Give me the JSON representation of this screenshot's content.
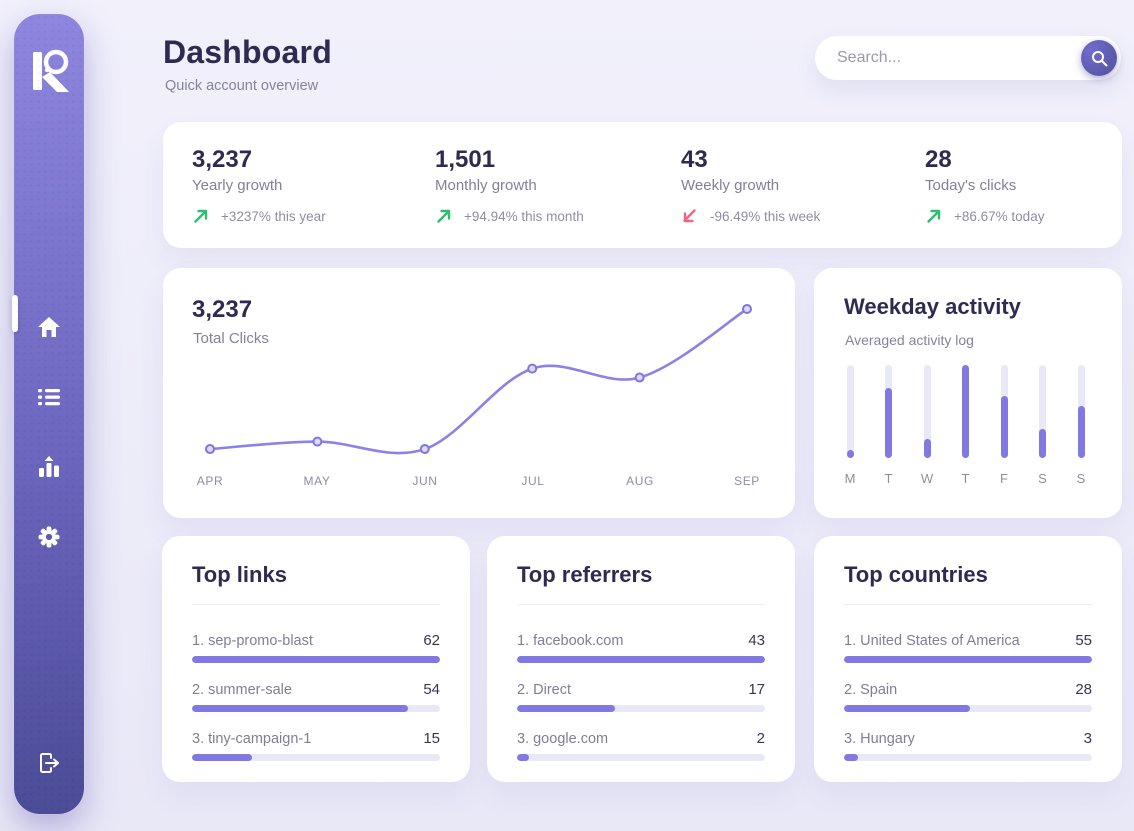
{
  "header": {
    "title": "Dashboard",
    "subtitle": "Quick account overview"
  },
  "search": {
    "placeholder": "Search..."
  },
  "colors": {
    "accent": "#8179E1",
    "line": "#8B82E8",
    "positive": "#2EBE70",
    "negative": "#F4647B",
    "sidebar_top": "#8F87DF",
    "sidebar_bottom": "#4B4B96",
    "track": "#E9E8F7"
  },
  "sidebar": {
    "logo": "K",
    "items": [
      {
        "id": "home",
        "icon": "home-icon",
        "active": true
      },
      {
        "id": "links",
        "icon": "list-icon",
        "active": false
      },
      {
        "id": "stats",
        "icon": "bar-chart-icon",
        "active": false
      },
      {
        "id": "settings",
        "icon": "gear-icon",
        "active": false
      }
    ],
    "logout_icon": "logout-icon"
  },
  "stats": [
    {
      "value": "3,237",
      "label": "Yearly growth",
      "change": "+3237% this year",
      "direction": "up",
      "color": "#2EBE70"
    },
    {
      "value": "1,501",
      "label": "Monthly growth",
      "change": "+94.94% this month",
      "direction": "up",
      "color": "#2EBE70"
    },
    {
      "value": "43",
      "label": "Weekly growth",
      "change": "-96.49% this week",
      "direction": "down",
      "color": "#F4647B"
    },
    {
      "value": "28",
      "label": "Today's clicks",
      "change": "+86.67% today",
      "direction": "up",
      "color": "#2EBE70"
    }
  ],
  "chart_data": [
    {
      "type": "line",
      "title": "Total Clicks",
      "total": "3,237",
      "x": [
        "APR",
        "MAY",
        "JUN",
        "JUL",
        "AUG",
        "SEP"
      ],
      "values": [
        6,
        11,
        6,
        60,
        54,
        100
      ],
      "value_unit": "percent of max (estimated from pixel positions, no y-axis shown)",
      "grid": false,
      "legend": false,
      "line_color": "#8B82E8",
      "marker": "open-circle"
    },
    {
      "type": "bar",
      "title": "Weekday activity",
      "subtitle": "Averaged activity log",
      "categories": [
        "M",
        "T",
        "W",
        "T",
        "F",
        "S",
        "S"
      ],
      "values": [
        9,
        75,
        20,
        100,
        67,
        31,
        56
      ],
      "value_unit": "percent of max (estimated, no y-axis shown)",
      "bar_color": "#8179E1",
      "track_color": "#E9E8F7"
    }
  ],
  "lists": [
    {
      "title": "Top links",
      "items": [
        {
          "label": "1. sep-promo-blast",
          "value": 62
        },
        {
          "label": "2. summer-sale",
          "value": 54
        },
        {
          "label": "3. tiny-campaign-1",
          "value": 15
        }
      ]
    },
    {
      "title": "Top referrers",
      "items": [
        {
          "label": "1. facebook.com",
          "value": 43
        },
        {
          "label": "2. Direct",
          "value": 17
        },
        {
          "label": "3. google.com",
          "value": 2
        }
      ]
    },
    {
      "title": "Top countries",
      "items": [
        {
          "label": "1. United States of America",
          "value": 55
        },
        {
          "label": "2. Spain",
          "value": 28
        },
        {
          "label": "3. Hungary",
          "value": 3
        }
      ]
    }
  ]
}
